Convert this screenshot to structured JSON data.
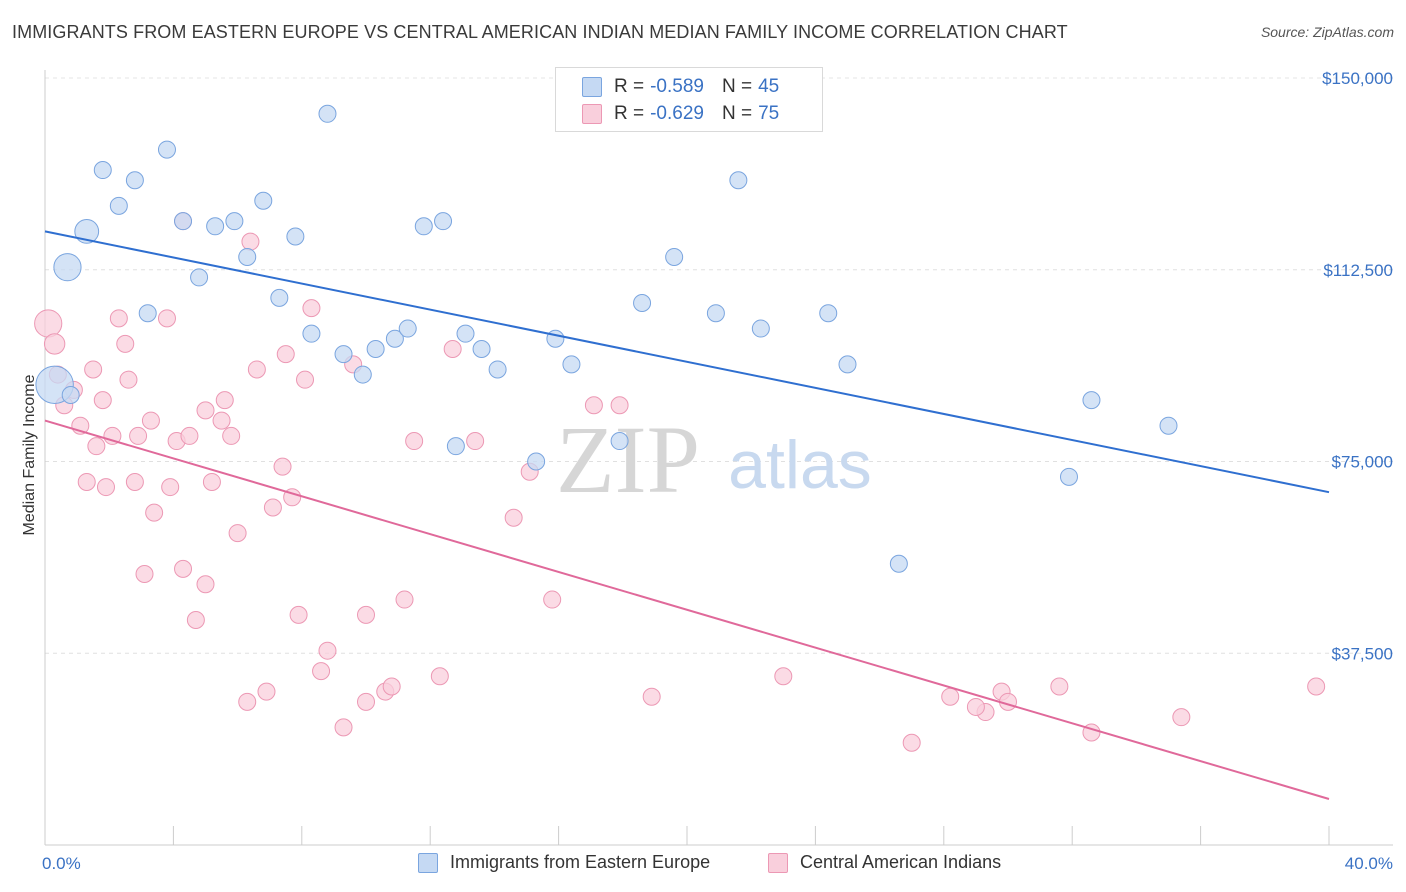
{
  "header": {
    "title": "IMMIGRANTS FROM EASTERN EUROPE VS CENTRAL AMERICAN INDIAN MEDIAN FAMILY INCOME CORRELATION CHART",
    "source": "Source: ZipAtlas.com"
  },
  "watermark": {
    "zip": "ZIP",
    "atlas": "atlas"
  },
  "legend": {
    "r_label": "R =",
    "n_label": "N =",
    "rows": [
      {
        "r": "-0.589",
        "n": "45"
      },
      {
        "r": "-0.629",
        "n": "75"
      }
    ]
  },
  "colors": {
    "blue_fill": "#c5d9f3",
    "blue_stroke": "#7aa5df",
    "blue_line": "#2f6fd0",
    "pink_fill": "#f9cfdc",
    "pink_stroke": "#ec98b4",
    "pink_line": "#e0699a",
    "tick_text": "#3a72c4"
  },
  "chart_data": {
    "type": "scatter",
    "title": "IMMIGRANTS FROM EASTERN EUROPE VS CENTRAL AMERICAN INDIAN MEDIAN FAMILY INCOME CORRELATION CHART",
    "ylabel": "Median Family Income",
    "xlabel": "",
    "xlim": [
      0,
      40
    ],
    "ylim": [
      0,
      155000
    ],
    "x_tick_labels": [
      "0.0%",
      "40.0%"
    ],
    "y_ticks": [
      37500,
      75000,
      112500,
      150000
    ],
    "y_tick_labels": [
      "$37,500",
      "$75,000",
      "$112,500",
      "$150,000"
    ],
    "grid": "horizontal dashed",
    "legend_position": "top-center",
    "series": [
      {
        "name": "Immigrants from Eastern Europe",
        "r": -0.589,
        "n": 45,
        "trend": {
          "x": [
            0,
            40
          ],
          "y": [
            120000,
            69000
          ]
        },
        "points": [
          [
            0.3,
            90000,
            2.2
          ],
          [
            0.8,
            88000,
            1
          ],
          [
            1.3,
            120000,
            1.4
          ],
          [
            0.7,
            113000,
            1.6
          ],
          [
            1.8,
            132000,
            1
          ],
          [
            2.3,
            125000,
            1
          ],
          [
            2.8,
            130000,
            1
          ],
          [
            3.2,
            104000,
            1
          ],
          [
            3.8,
            136000,
            1
          ],
          [
            4.3,
            122000,
            1
          ],
          [
            4.8,
            111000,
            1
          ],
          [
            5.3,
            121000,
            1
          ],
          [
            5.9,
            122000,
            1
          ],
          [
            6.3,
            115000,
            1
          ],
          [
            6.8,
            126000,
            1
          ],
          [
            7.3,
            107000,
            1
          ],
          [
            7.8,
            119000,
            1
          ],
          [
            8.3,
            100000,
            1
          ],
          [
            8.8,
            143000,
            1
          ],
          [
            9.3,
            96000,
            1
          ],
          [
            9.9,
            92000,
            1
          ],
          [
            10.3,
            97000,
            1
          ],
          [
            10.9,
            99000,
            1
          ],
          [
            11.3,
            101000,
            1
          ],
          [
            11.8,
            121000,
            1
          ],
          [
            12.4,
            122000,
            1
          ],
          [
            12.8,
            78000,
            1
          ],
          [
            13.1,
            100000,
            1
          ],
          [
            13.6,
            97000,
            1
          ],
          [
            14.1,
            93000,
            1
          ],
          [
            15.3,
            75000,
            1
          ],
          [
            15.9,
            99000,
            1
          ],
          [
            16.4,
            94000,
            1
          ],
          [
            17.9,
            79000,
            1
          ],
          [
            18.6,
            106000,
            1
          ],
          [
            19.6,
            115000,
            1
          ],
          [
            20.9,
            104000,
            1
          ],
          [
            21.6,
            130000,
            1
          ],
          [
            22.3,
            101000,
            1
          ],
          [
            24.4,
            104000,
            1
          ],
          [
            25.0,
            94000,
            1
          ],
          [
            26.6,
            55000,
            1
          ],
          [
            31.9,
            72000,
            1
          ],
          [
            32.6,
            87000,
            1
          ],
          [
            35.0,
            82000,
            1
          ]
        ]
      },
      {
        "name": "Central American Indians",
        "r": -0.629,
        "n": 75,
        "trend": {
          "x": [
            0,
            40
          ],
          "y": [
            83000,
            9000
          ]
        },
        "points": [
          [
            0.1,
            102000,
            1.6
          ],
          [
            0.3,
            98000,
            1.2
          ],
          [
            0.4,
            92000,
            1
          ],
          [
            0.6,
            86000,
            1
          ],
          [
            0.9,
            89000,
            1
          ],
          [
            1.1,
            82000,
            1
          ],
          [
            1.3,
            71000,
            1
          ],
          [
            1.6,
            78000,
            1
          ],
          [
            1.5,
            93000,
            1
          ],
          [
            1.8,
            87000,
            1
          ],
          [
            1.9,
            70000,
            1
          ],
          [
            2.1,
            80000,
            1
          ],
          [
            2.3,
            103000,
            1
          ],
          [
            2.5,
            98000,
            1
          ],
          [
            2.6,
            91000,
            1
          ],
          [
            2.8,
            71000,
            1
          ],
          [
            2.9,
            80000,
            1
          ],
          [
            3.1,
            53000,
            1
          ],
          [
            3.3,
            83000,
            1
          ],
          [
            3.4,
            65000,
            1
          ],
          [
            3.8,
            103000,
            1
          ],
          [
            3.9,
            70000,
            1
          ],
          [
            4.1,
            79000,
            1
          ],
          [
            4.3,
            54000,
            1
          ],
          [
            4.3,
            122000,
            1
          ],
          [
            4.5,
            80000,
            1
          ],
          [
            4.7,
            44000,
            1
          ],
          [
            5.0,
            85000,
            1
          ],
          [
            5.0,
            51000,
            1
          ],
          [
            5.2,
            71000,
            1
          ],
          [
            5.5,
            83000,
            1
          ],
          [
            5.6,
            87000,
            1
          ],
          [
            5.8,
            80000,
            1
          ],
          [
            6.0,
            61000,
            1
          ],
          [
            6.3,
            28000,
            1
          ],
          [
            6.4,
            118000,
            1
          ],
          [
            6.6,
            93000,
            1
          ],
          [
            6.9,
            30000,
            1
          ],
          [
            7.1,
            66000,
            1
          ],
          [
            7.4,
            74000,
            1
          ],
          [
            7.5,
            96000,
            1
          ],
          [
            7.7,
            68000,
            1
          ],
          [
            7.9,
            45000,
            1
          ],
          [
            8.1,
            91000,
            1
          ],
          [
            8.3,
            105000,
            1
          ],
          [
            8.6,
            34000,
            1
          ],
          [
            8.8,
            38000,
            1
          ],
          [
            9.3,
            23000,
            1
          ],
          [
            9.6,
            94000,
            1
          ],
          [
            10.0,
            45000,
            1
          ],
          [
            10.0,
            28000,
            1
          ],
          [
            10.6,
            30000,
            1
          ],
          [
            10.8,
            31000,
            1
          ],
          [
            11.2,
            48000,
            1
          ],
          [
            11.5,
            79000,
            1
          ],
          [
            12.3,
            33000,
            1
          ],
          [
            12.7,
            97000,
            1
          ],
          [
            13.4,
            79000,
            1
          ],
          [
            14.6,
            64000,
            1
          ],
          [
            15.1,
            73000,
            1
          ],
          [
            15.8,
            48000,
            1
          ],
          [
            17.1,
            86000,
            1
          ],
          [
            17.9,
            86000,
            1
          ],
          [
            18.9,
            29000,
            1
          ],
          [
            23.0,
            33000,
            1
          ],
          [
            27.0,
            20000,
            1
          ],
          [
            28.2,
            29000,
            1
          ],
          [
            29.3,
            26000,
            1
          ],
          [
            29.8,
            30000,
            1
          ],
          [
            30.0,
            28000,
            1
          ],
          [
            31.6,
            31000,
            1
          ],
          [
            32.6,
            22000,
            1
          ],
          [
            35.4,
            25000,
            1
          ],
          [
            39.6,
            31000,
            1
          ],
          [
            29.0,
            27000,
            1
          ]
        ]
      }
    ]
  }
}
